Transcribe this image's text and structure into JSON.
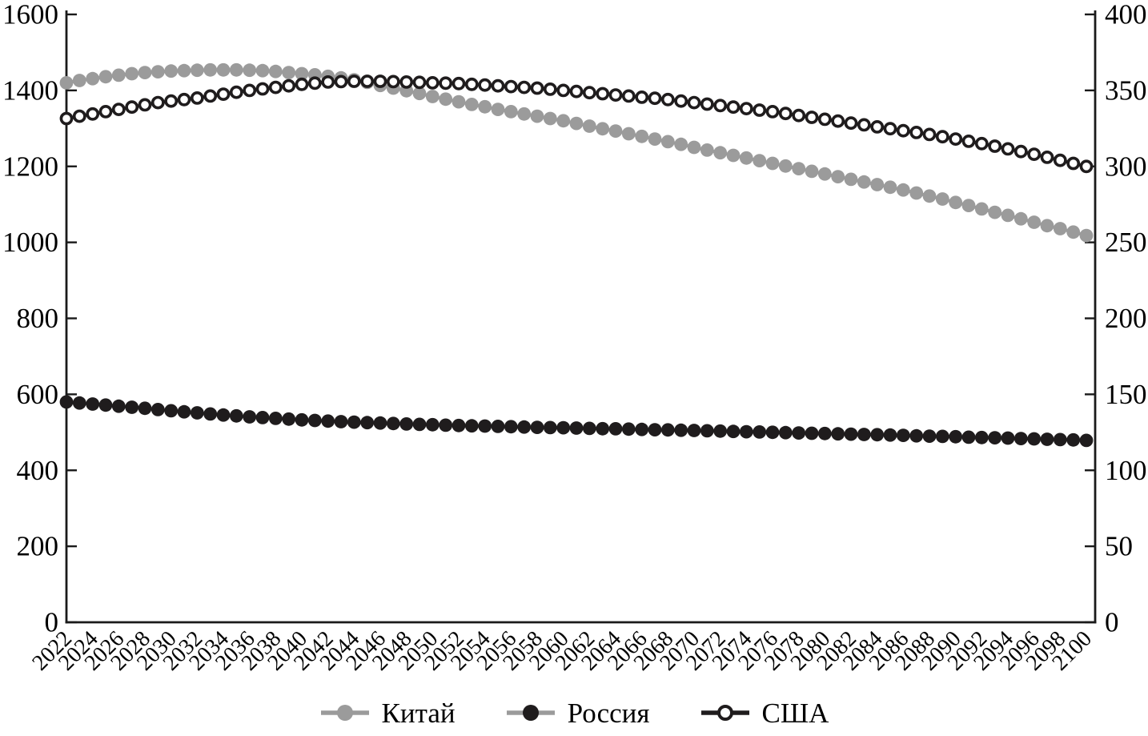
{
  "chart_data": {
    "type": "line",
    "title": "",
    "xlabel": "",
    "ylabel_left": "",
    "ylabel_right": "",
    "grid": false,
    "legend_position": "bottom",
    "years": [
      2022,
      2023,
      2024,
      2025,
      2026,
      2027,
      2028,
      2029,
      2030,
      2031,
      2032,
      2033,
      2034,
      2035,
      2036,
      2037,
      2038,
      2039,
      2040,
      2041,
      2042,
      2043,
      2044,
      2045,
      2046,
      2047,
      2048,
      2049,
      2050,
      2051,
      2052,
      2053,
      2054,
      2055,
      2056,
      2057,
      2058,
      2059,
      2060,
      2061,
      2062,
      2063,
      2064,
      2065,
      2066,
      2067,
      2068,
      2069,
      2070,
      2071,
      2072,
      2073,
      2074,
      2075,
      2076,
      2077,
      2078,
      2079,
      2080,
      2081,
      2082,
      2083,
      2084,
      2085,
      2086,
      2087,
      2088,
      2089,
      2090,
      2091,
      2092,
      2093,
      2094,
      2095,
      2096,
      2097,
      2098,
      2099,
      2100
    ],
    "x_tick_labels": [
      "2022",
      "2024",
      "2026",
      "2028",
      "2030",
      "2032",
      "2034",
      "2036",
      "2038",
      "2040",
      "2042",
      "2044",
      "2046",
      "2048",
      "2050",
      "2052",
      "2054",
      "2056",
      "2058",
      "2060",
      "2062",
      "2064",
      "2066",
      "2068",
      "2070",
      "2072",
      "2074",
      "2076",
      "2078",
      "2080",
      "2082",
      "2084",
      "2086",
      "2088",
      "2090",
      "2092",
      "2094",
      "2096",
      "2098",
      "2100"
    ],
    "left_axis": {
      "min": 0,
      "max": 1600,
      "ticks": [
        "0",
        "200",
        "400",
        "600",
        "800",
        "1000",
        "1200",
        "1400",
        "1600"
      ]
    },
    "right_axis": {
      "min": 0,
      "max": 400,
      "ticks": [
        "0",
        "50",
        "100",
        "150",
        "200",
        "250",
        "300",
        "350",
        "400"
      ]
    },
    "series": [
      {
        "name": "Китай",
        "axis": "left",
        "marker": "filled-circle",
        "marker_color": "#9b9b9b",
        "line_color": "#9b9b9b",
        "values": [
          1420,
          1426,
          1431,
          1436,
          1440,
          1444,
          1447,
          1449,
          1451,
          1452,
          1453,
          1454,
          1454,
          1454,
          1453,
          1452,
          1450,
          1447,
          1444,
          1441,
          1437,
          1433,
          1428,
          1421,
          1413,
          1406,
          1399,
          1392,
          1384,
          1377,
          1370,
          1363,
          1357,
          1350,
          1344,
          1338,
          1332,
          1326,
          1320,
          1313,
          1306,
          1299,
          1293,
          1286,
          1279,
          1272,
          1265,
          1258,
          1250,
          1243,
          1236,
          1229,
          1222,
          1215,
          1208,
          1201,
          1194,
          1187,
          1180,
          1173,
          1166,
          1159,
          1152,
          1145,
          1138,
          1130,
          1122,
          1114,
          1105,
          1097,
          1088,
          1079,
          1071,
          1062,
          1053,
          1044,
          1036,
          1027,
          1018
        ]
      },
      {
        "name": "Россия",
        "axis": "right",
        "marker": "filled-circle",
        "marker_color": "#1f1c1d",
        "line_color": "#9b9b9b",
        "values": [
          145,
          144.3,
          143.6,
          142.9,
          142.2,
          141.5,
          140.8,
          140,
          139.2,
          138.5,
          137.8,
          137.1,
          136.4,
          135.8,
          135.2,
          134.7,
          134.2,
          133.7,
          133.2,
          132.8,
          132.4,
          132,
          131.7,
          131.4,
          131.1,
          130.8,
          130.5,
          130.2,
          130,
          129.7,
          129.5,
          129.3,
          129.1,
          128.9,
          128.7,
          128.5,
          128.3,
          128.1,
          128,
          127.8,
          127.6,
          127.4,
          127.3,
          127.1,
          126.9,
          126.7,
          126.6,
          126.4,
          126.2,
          126,
          125.8,
          125.6,
          125.4,
          125.2,
          125,
          124.8,
          124.6,
          124.4,
          124.2,
          124,
          123.8,
          123.6,
          123.4,
          123.2,
          123,
          122.7,
          122.5,
          122.3,
          122.1,
          121.8,
          121.6,
          121.4,
          121.2,
          120.9,
          120.7,
          120.4,
          120.2,
          120,
          119.7
        ]
      },
      {
        "name": "США",
        "axis": "right",
        "marker": "open-circle",
        "marker_color": "#ffffff",
        "line_color": "#1f1c1d",
        "values": [
          331.5,
          333,
          334.5,
          336,
          337.5,
          339,
          340.5,
          342,
          343,
          344,
          345,
          346.3,
          347.5,
          348.8,
          350,
          351,
          352,
          353,
          354,
          354.8,
          355.5,
          355.8,
          356,
          356,
          356,
          355.8,
          355.5,
          355.3,
          355,
          354.8,
          354.5,
          354,
          353.5,
          353,
          352.5,
          352,
          351.5,
          350.8,
          350,
          349.3,
          348.5,
          347.8,
          347,
          346.3,
          345.5,
          344.8,
          344,
          343,
          342,
          341,
          340,
          339,
          338,
          337,
          336,
          334.8,
          333.5,
          332.3,
          331,
          329.8,
          328.5,
          327.3,
          326,
          324.8,
          323.5,
          322.3,
          321,
          319.5,
          318,
          316.5,
          315,
          313.3,
          311.5,
          309.8,
          308,
          306,
          304,
          302,
          300
        ]
      }
    ]
  },
  "colors": {
    "background": "#ffffff",
    "axis": "#1a1a1a",
    "text": "#000000"
  }
}
